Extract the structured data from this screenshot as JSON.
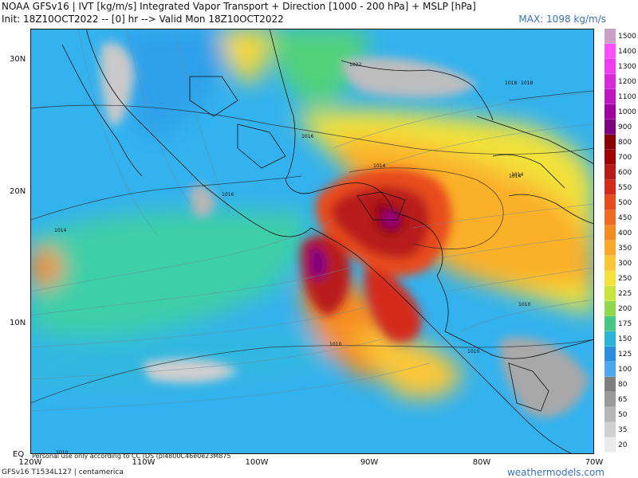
{
  "header": {
    "line1": "NOAA GFSv16 | IVT [kg/m/s] Integrated Vapor Transport + Direction [1000 - 200 hPa] + MSLP [hPa]",
    "line2": "Init: 18Z10OCT2022 -- [0] hr --> Valid Mon 18Z10OCT2022",
    "max_label": "MAX: 1098 kg/m/s"
  },
  "axes": {
    "lat_labels": [
      "30N",
      "20N",
      "10N",
      "EQ"
    ],
    "lon_labels": [
      "120W",
      "110W",
      "100W",
      "90W",
      "80W",
      "70W"
    ]
  },
  "isobars": {
    "labels": [
      "1018",
      "1016",
      "1014",
      "1010",
      "1014",
      "1010",
      "1010",
      "1016",
      "1014",
      "1018",
      "1014",
      "1022",
      "1010"
    ]
  },
  "colorbar": {
    "labels": [
      "1500",
      "1400",
      "1300",
      "1200",
      "1100",
      "1000",
      "900",
      "800",
      "700",
      "600",
      "550",
      "500",
      "450",
      "400",
      "350",
      "300",
      "250",
      "225",
      "200",
      "175",
      "150",
      "125",
      "100",
      "80",
      "65",
      "50",
      "35",
      "20"
    ],
    "colors": [
      "#c9a0c8",
      "#ff4fff",
      "#f03cf0",
      "#d92ad9",
      "#bf17bf",
      "#a000a0",
      "#800080",
      "#8b0000",
      "#a00000",
      "#b81a1a",
      "#d42a1a",
      "#e84b1d",
      "#f06a22",
      "#f58c22",
      "#fba72b",
      "#fcc737",
      "#f2e23a",
      "#c9e43a",
      "#8fd94a",
      "#46c783",
      "#2ab5d6",
      "#2a8ee0",
      "#4aa8ee",
      "#7f7f7f",
      "#9a9a9a",
      "#b6b6b6",
      "#d0d0d0",
      "#eaeaea"
    ]
  },
  "footer": {
    "left": "GFSv16 T1534L127 | centamerica",
    "note": "Personal use only according to CC (DS (pl4800C46e0e23M875",
    "brand": "weathermodels.com"
  }
}
